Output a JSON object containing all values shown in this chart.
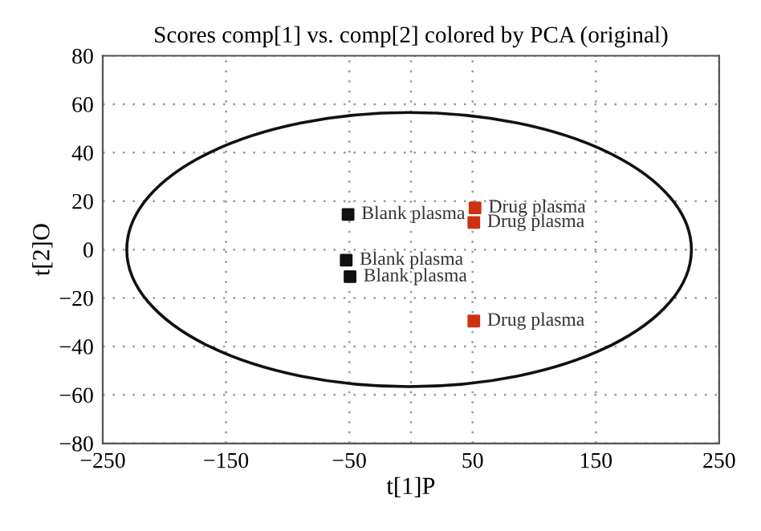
{
  "chart_data": {
    "type": "scatter",
    "title": "Scores comp[1] vs. comp[2] colored by PCA (original)",
    "xlabel": "t[1]P",
    "ylabel": "t[2]O",
    "xlim": [
      -250,
      250
    ],
    "ylim": [
      -80,
      80
    ],
    "xticks": [
      -250,
      -150,
      -50,
      {
        "value": 0,
        "label": null
      },
      50,
      150,
      250
    ],
    "yticks": [
      -80,
      -60,
      -40,
      -20,
      0,
      20,
      40,
      60,
      80
    ],
    "grid": true,
    "marker": "square",
    "series": [
      {
        "color": "#111111",
        "x": [
          -51,
          -52.5,
          -49.4
        ],
        "values": [
          14.5,
          -4.4,
          -11.2
        ]
      },
      {
        "color": "#cc3311",
        "x": [
          52,
          51,
          51
        ],
        "values": [
          17.2,
          11.2,
          -29.5
        ]
      }
    ],
    "annotations": [
      {
        "text": "Blank plasma",
        "x": -51,
        "y": 14.5
      },
      {
        "text": "Blank plasma",
        "x": -52.5,
        "y": -4.4
      },
      {
        "text": "Blank plasma",
        "x": -49.4,
        "y": -11.2
      },
      {
        "text": "Drug plasma",
        "x": 52,
        "y": 17.2
      },
      {
        "text": "Drug plasma",
        "x": 51,
        "y": 11.2
      },
      {
        "text": "Drug plasma",
        "x": 51,
        "y": -29.5
      }
    ]
  }
}
